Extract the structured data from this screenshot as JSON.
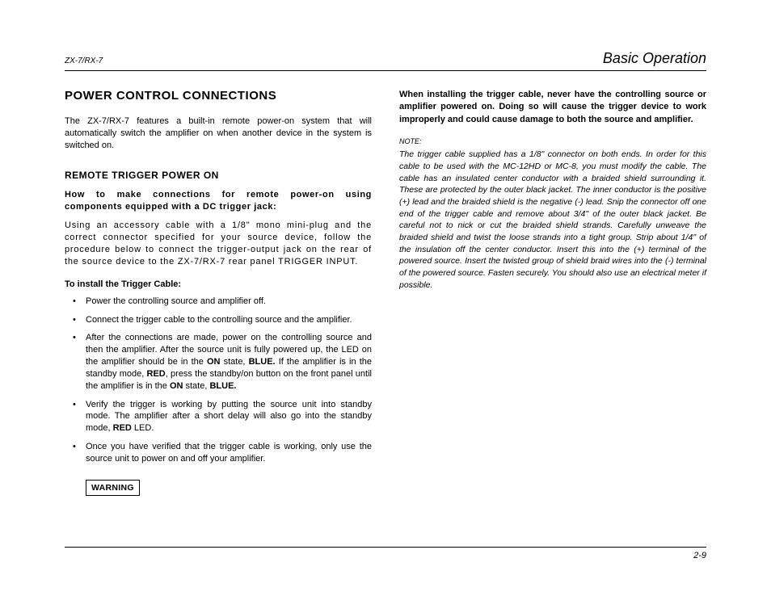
{
  "header": {
    "model": "ZX-7/RX-7",
    "section": "Basic Operation"
  },
  "left": {
    "title": "POWER CONTROL CONNECTIONS",
    "intro": "The ZX-7/RX-7 features a built-in remote power-on system that will automatically switch the amplifier on when another device in the system is switched on.",
    "sub1": "REMOTE TRIGGER POWER ON",
    "howto": "How to make connections for remote power-on using components equipped with a DC trigger jack:",
    "access": "Using an accessory cable with a 1/8\" mono mini-plug and the correct connector specified for your source device, follow the procedure below to connect the trigger-output jack on the rear of the source device to the ZX-7/RX-7 rear panel TRIGGER INPUT.",
    "install_label": "To install the Trigger Cable:",
    "steps": [
      "Power the controlling source and amplifier off.",
      "Connect the trigger cable to the controlling source and the amplifier.",
      "After the connections are made, power on the controlling source and then the amplifier. After the source unit is fully powered up, the LED on the amplifier should be in the <span class=\"b\">ON</span> state, <span class=\"b\">BLUE.</span> If the amplifier is in the standby mode, <span class=\"b\">RED</span>, press the standby/on button on the front panel until the amplifier is in the <span class=\"b\">ON</span> state, <span class=\"b\">BLUE.</span>",
      "Verify the trigger is working by putting the source unit into standby mode. The amplifier after a short delay will also go into the standby mode, <span class=\"b\">RED</span> LED.",
      "Once you have verified that the trigger cable is working, only use the source unit to power on and off your amplifier."
    ],
    "warning_label": "WARNING"
  },
  "right": {
    "warn": "When installing the trigger cable, never have the controlling source or amplifier powered on. Doing so will cause the trigger device to work improperly and could cause damage to both the source and amplifier.",
    "note_label": "NOTE:",
    "note": "The trigger cable supplied has a 1/8\" connector on both ends. In order for this cable to be used with the MC-12HD or MC-8, you must modify the cable. The cable has an insulated center conductor with a braided shield surrounding it. These are protected by the outer black jacket. The inner conductor is the positive (+) lead and the braided shield is the negative (-) lead. Snip the connector off one end of the trigger cable and remove about 3/4\" of the outer black jacket. Be careful not to nick or cut the braided shield strands. Carefully unweave the braided shield and twist the loose strands into a tight group. Strip about 1/4\" of the insulation off the center conductor. Insert this into the (+) terminal of the powered source. Insert the twisted group of shield braid wires into the (-) terminal of the powered source. Fasten securely. You should also use an electrical meter if possible."
  },
  "footer": {
    "page": "2-9"
  }
}
